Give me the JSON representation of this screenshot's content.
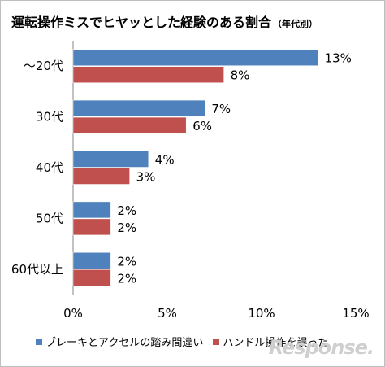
{
  "chart_data": {
    "type": "bar",
    "orientation": "horizontal",
    "title": "運転操作ミスでヒヤッとした経験のある割合",
    "subtitle": "（年代別）",
    "categories": [
      "～20代",
      "30代",
      "40代",
      "50代",
      "60代以上"
    ],
    "series": [
      {
        "name": "ブレーキとアクセルの踏み間違い",
        "values": [
          13,
          7,
          4,
          2,
          2
        ],
        "color": "#4f81bd",
        "labels": [
          "13%",
          "7%",
          "4%",
          "2%",
          "2%"
        ]
      },
      {
        "name": "ハンドル操作を誤った",
        "values": [
          8,
          6,
          3,
          2,
          2
        ],
        "color": "#c0504d",
        "labels": [
          "8%",
          "6%",
          "3%",
          "2%",
          "2%"
        ]
      }
    ],
    "xlim": [
      0,
      15
    ],
    "xticks": [
      0,
      5,
      10,
      15
    ],
    "xtick_labels": [
      "0%",
      "5%",
      "10%",
      "15%"
    ],
    "grid": false,
    "legend_position": "bottom"
  },
  "watermark": "Response."
}
